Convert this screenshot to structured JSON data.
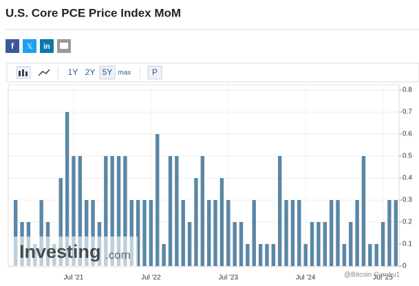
{
  "chart_data": {
    "type": "bar",
    "title": "U.S. Core PCE Price Index MoM",
    "share": [
      "f",
      "𝕏",
      "in"
    ],
    "toolbar": [
      "1Y",
      "2Y",
      "5Y",
      "max",
      "P"
    ],
    "watermark": [
      "Investing",
      ".com",
      "@Bitcoin Guruku1"
    ],
    "categories": [
      null,
      null,
      null,
      null,
      null,
      null,
      null,
      null,
      null,
      "Jul '21",
      null,
      null,
      null,
      null,
      null,
      null,
      null,
      null,
      null,
      null,
      null,
      "Jul '22",
      null,
      null,
      null,
      null,
      null,
      null,
      null,
      null,
      null,
      null,
      null,
      "Jul '23",
      null,
      null,
      null,
      null,
      null,
      null,
      null,
      null,
      null,
      null,
      null,
      "Jul '24",
      null,
      null,
      null,
      null,
      null,
      null,
      null,
      null,
      null,
      null,
      null,
      "Jul '25",
      null,
      null
    ],
    "values": [
      0.3,
      0.2,
      0.2,
      0.1,
      0.3,
      0.2,
      0.1,
      0.4,
      0.7,
      0.5,
      0.5,
      0.3,
      0.3,
      0.2,
      0.5,
      0.5,
      0.5,
      0.5,
      0.3,
      0.3,
      0.3,
      0.3,
      0.6,
      0.1,
      0.5,
      0.5,
      0.3,
      0.2,
      0.4,
      0.5,
      0.3,
      0.3,
      0.4,
      0.3,
      0.2,
      0.2,
      0.1,
      0.3,
      0.1,
      0.1,
      0.1,
      0.5,
      0.3,
      0.3,
      0.3,
      0.1,
      0.2,
      0.2,
      0.2,
      0.3,
      0.3,
      0.1,
      0.2,
      0.3,
      0.5,
      0.1,
      0.1,
      0.2,
      0.3,
      0.3
    ],
    "color": "#5a87a6",
    "ylim": [
      0,
      0.8
    ],
    "yticks": [
      0,
      0.1,
      0.2,
      0.3,
      0.4,
      0.5,
      0.6,
      0.7,
      0.8
    ],
    "grid": true
  }
}
